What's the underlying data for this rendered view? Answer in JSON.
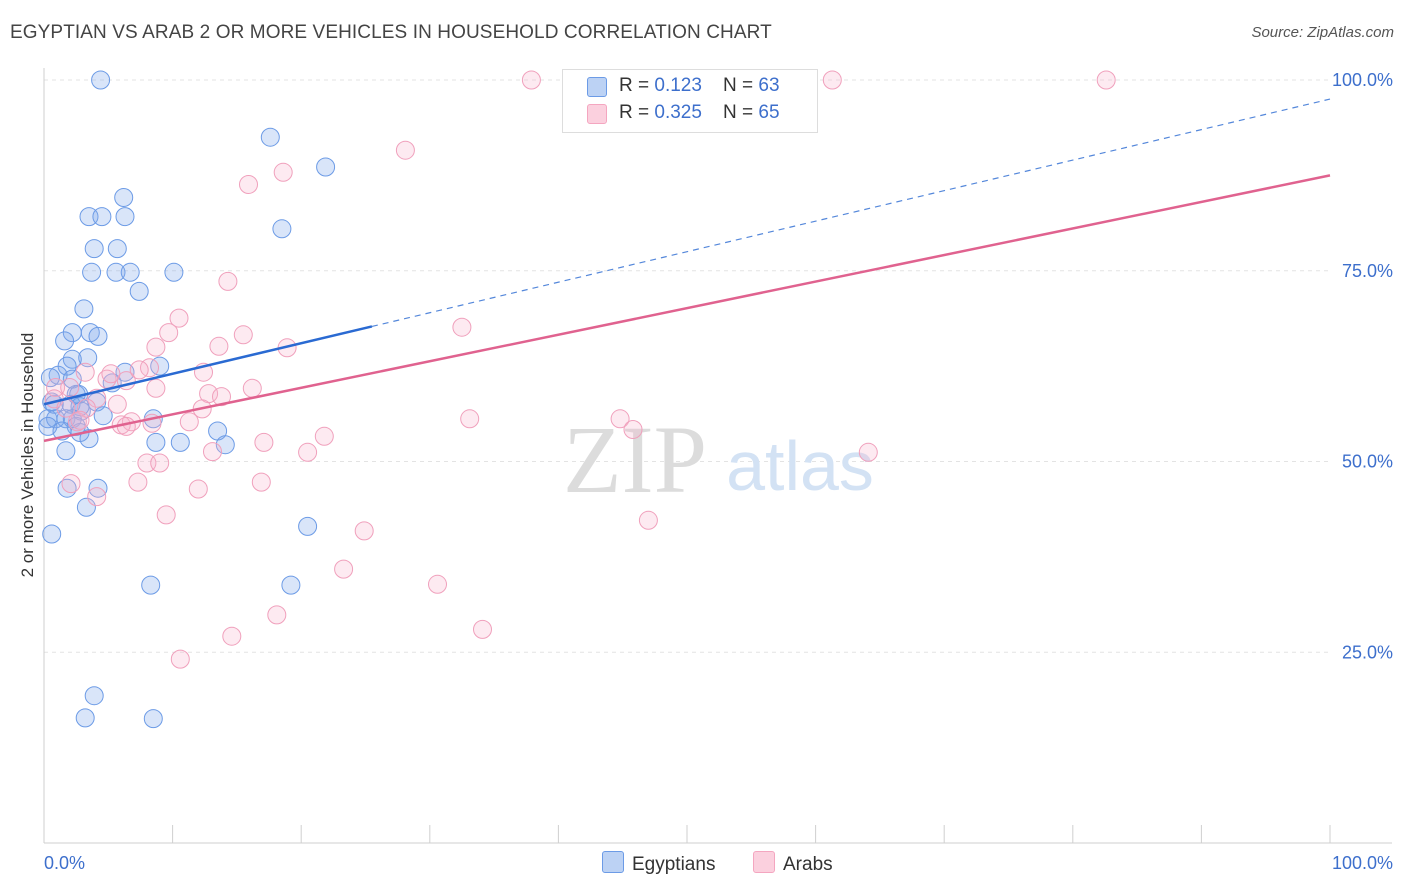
{
  "title": "EGYPTIAN VS ARAB 2 OR MORE VEHICLES IN HOUSEHOLD CORRELATION CHART",
  "source": "Source: ZipAtlas.com",
  "watermark": {
    "zip": "ZIP",
    "atlas": "atlas"
  },
  "legend": {
    "egyptians": {
      "r_label": "R = ",
      "r_value": "0.123",
      "n_label": "N = ",
      "n_value": "63"
    },
    "arabs": {
      "r_label": "R = ",
      "r_value": "0.325",
      "n_label": "N = ",
      "n_value": "65"
    }
  },
  "chart_data": {
    "type": "scatter",
    "title": "EGYPTIAN VS ARAB 2 OR MORE VEHICLES IN HOUSEHOLD CORRELATION CHART",
    "xlabel": "",
    "ylabel": "2 or more Vehicles in Household",
    "xlim": [
      0,
      100
    ],
    "ylim": [
      0,
      104
    ],
    "x_tick_labels": [
      "0.0%",
      "100.0%"
    ],
    "y_tick_labels": [
      "25.0%",
      "50.0%",
      "75.0%",
      "100.0%"
    ],
    "y_ticks": [
      25,
      50,
      75,
      100
    ],
    "grid": true,
    "legend_position": "bottom",
    "colors": {
      "egyptians": "#6c9be6",
      "arabs": "#f4a6c0",
      "egyptians_line": "#2a6ad2",
      "arabs_line": "#e0628f",
      "tick_label": "#3d6fcc"
    },
    "series": [
      {
        "name": "Egyptians",
        "R": 0.123,
        "N": 63,
        "trend": {
          "x": [
            0,
            25.5,
            100
          ],
          "y": [
            57.5,
            67.7,
            97.5
          ]
        },
        "points": [
          [
            4.4,
            100
          ],
          [
            17.6,
            92.5
          ],
          [
            21.9,
            88.6
          ],
          [
            6.2,
            84.6
          ],
          [
            3.5,
            82.1
          ],
          [
            4.5,
            82.1
          ],
          [
            6.3,
            82.1
          ],
          [
            18.5,
            80.5
          ],
          [
            3.9,
            77.9
          ],
          [
            5.7,
            77.9
          ],
          [
            3.7,
            74.8
          ],
          [
            5.6,
            74.8
          ],
          [
            6.7,
            74.8
          ],
          [
            10.1,
            74.8
          ],
          [
            7.4,
            72.3
          ],
          [
            3.1,
            70.0
          ],
          [
            2.2,
            66.9
          ],
          [
            3.6,
            66.9
          ],
          [
            4.2,
            66.4
          ],
          [
            1.6,
            65.8
          ],
          [
            3.4,
            63.6
          ],
          [
            2.2,
            63.4
          ],
          [
            1.8,
            62.5
          ],
          [
            9.0,
            62.5
          ],
          [
            6.3,
            61.7
          ],
          [
            1.1,
            61.3
          ],
          [
            0.5,
            61.0
          ],
          [
            2.2,
            60.8
          ],
          [
            5.3,
            60.3
          ],
          [
            2.5,
            58.8
          ],
          [
            2.7,
            58.8
          ],
          [
            0.6,
            57.8
          ],
          [
            4.1,
            57.8
          ],
          [
            0.8,
            57.5
          ],
          [
            2.1,
            57.5
          ],
          [
            2.8,
            57.2
          ],
          [
            2.9,
            56.6
          ],
          [
            4.6,
            56.0
          ],
          [
            0.3,
            55.6
          ],
          [
            0.9,
            55.6
          ],
          [
            1.7,
            55.6
          ],
          [
            2.2,
            55.6
          ],
          [
            8.5,
            55.6
          ],
          [
            0.3,
            54.6
          ],
          [
            2.5,
            54.6
          ],
          [
            1.4,
            54.0
          ],
          [
            2.8,
            53.8
          ],
          [
            13.5,
            54.0
          ],
          [
            3.5,
            53.0
          ],
          [
            8.7,
            52.5
          ],
          [
            10.6,
            52.5
          ],
          [
            1.7,
            51.4
          ],
          [
            1.8,
            46.5
          ],
          [
            4.2,
            46.5
          ],
          [
            3.3,
            44.0
          ],
          [
            0.6,
            40.5
          ],
          [
            20.5,
            41.5
          ],
          [
            8.3,
            33.8
          ],
          [
            19.2,
            33.8
          ],
          [
            3.9,
            19.3
          ],
          [
            3.2,
            16.4
          ],
          [
            8.5,
            16.3
          ],
          [
            14.1,
            52.2
          ]
        ]
      },
      {
        "name": "Arabs",
        "R": 0.325,
        "N": 65,
        "trend": {
          "x": [
            0,
            100
          ],
          "y": [
            52.7,
            87.5
          ]
        },
        "points": [
          [
            37.9,
            100
          ],
          [
            47.1,
            100
          ],
          [
            61.3,
            100
          ],
          [
            82.6,
            100
          ],
          [
            28.1,
            90.8
          ],
          [
            15.9,
            86.3
          ],
          [
            18.6,
            87.9
          ],
          [
            14.3,
            73.6
          ],
          [
            32.5,
            67.6
          ],
          [
            10.5,
            68.8
          ],
          [
            9.7,
            66.9
          ],
          [
            15.5,
            66.6
          ],
          [
            13.6,
            65.1
          ],
          [
            18.9,
            64.9
          ],
          [
            8.7,
            65.0
          ],
          [
            8.2,
            62.3
          ],
          [
            12.4,
            61.7
          ],
          [
            3.2,
            61.7
          ],
          [
            4.9,
            60.8
          ],
          [
            6.4,
            60.6
          ],
          [
            8.7,
            59.6
          ],
          [
            16.2,
            59.6
          ],
          [
            0.9,
            59.7
          ],
          [
            2.0,
            59.7
          ],
          [
            12.8,
            58.9
          ],
          [
            13.8,
            58.5
          ],
          [
            4.1,
            58.3
          ],
          [
            0.8,
            58.2
          ],
          [
            5.7,
            57.5
          ],
          [
            1.7,
            57.0
          ],
          [
            3.3,
            57.0
          ],
          [
            33.1,
            55.6
          ],
          [
            44.8,
            55.6
          ],
          [
            11.3,
            55.2
          ],
          [
            6.8,
            55.2
          ],
          [
            2.6,
            55.2
          ],
          [
            6.0,
            54.8
          ],
          [
            6.4,
            54.6
          ],
          [
            45.8,
            54.2
          ],
          [
            21.8,
            53.3
          ],
          [
            17.1,
            52.5
          ],
          [
            13.1,
            51.3
          ],
          [
            20.5,
            51.2
          ],
          [
            64.1,
            51.2
          ],
          [
            8.0,
            49.8
          ],
          [
            9.0,
            49.8
          ],
          [
            7.3,
            47.3
          ],
          [
            16.9,
            47.3
          ],
          [
            2.1,
            47.1
          ],
          [
            12.0,
            46.4
          ],
          [
            4.1,
            45.4
          ],
          [
            9.5,
            43.0
          ],
          [
            47.0,
            42.3
          ],
          [
            24.9,
            40.9
          ],
          [
            18.1,
            29.9
          ],
          [
            23.3,
            35.9
          ],
          [
            30.6,
            33.9
          ],
          [
            34.1,
            28.0
          ],
          [
            14.6,
            27.1
          ],
          [
            10.6,
            24.1
          ],
          [
            8.4,
            55.0
          ],
          [
            2.8,
            55.4
          ],
          [
            5.2,
            61.5
          ],
          [
            12.3,
            56.9
          ],
          [
            7.4,
            62.0
          ]
        ]
      }
    ]
  }
}
